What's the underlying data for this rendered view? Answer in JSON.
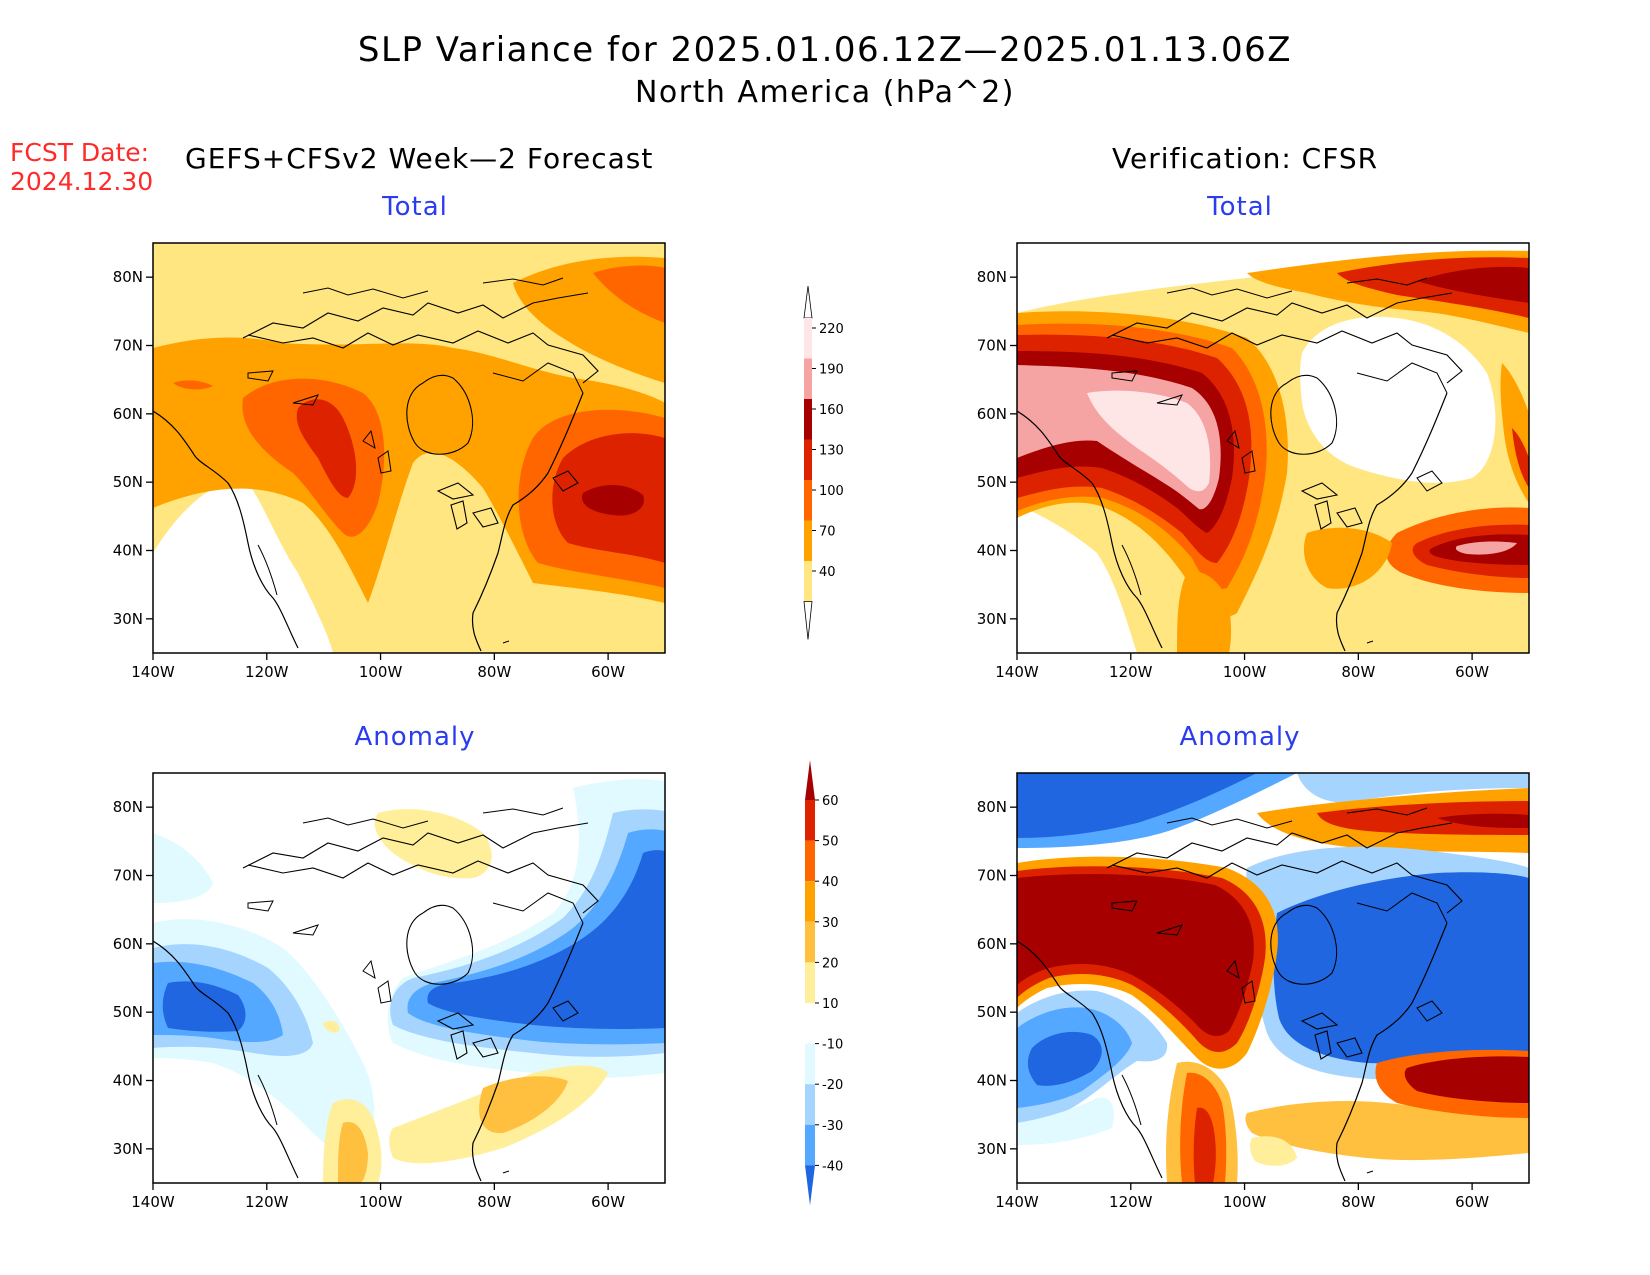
{
  "header": {
    "title_line1": "SLP Variance for 2025.01.06.12Z—2025.01.13.06Z",
    "title_line2": "North America (hPa^2)",
    "fcst_label": "FCST Date:",
    "fcst_date": "2024.12.30",
    "left_heading": "GEFS+CFSv2 Week—2 Forecast",
    "right_heading": "Verification: CFSR"
  },
  "panels": [
    {
      "id": "forecast-total",
      "title": "Total",
      "field": "total"
    },
    {
      "id": "verification-total",
      "title": "Total",
      "field": "total"
    },
    {
      "id": "forecast-anomaly",
      "title": "Anomaly",
      "field": "anomaly"
    },
    {
      "id": "verification-anomaly",
      "title": "Anomaly",
      "field": "anomaly"
    }
  ],
  "axes": {
    "lon_ticks": [
      "140W",
      "120W",
      "100W",
      "80W",
      "60W"
    ],
    "lat_ticks": [
      "80N",
      "70N",
      "60N",
      "50N",
      "40N",
      "30N"
    ]
  },
  "colorbar_total": {
    "labels": [
      "220",
      "190",
      "160",
      "130",
      "100",
      "70",
      "40"
    ],
    "colors": [
      "#ffe6e6",
      "#f5a3a3",
      "#a60000",
      "#dd2200",
      "#ff6600",
      "#ffa200",
      "#ffe680"
    ]
  },
  "colorbar_anomaly": {
    "labels": [
      "60",
      "50",
      "40",
      "30",
      "20",
      "10",
      "-10",
      "-20",
      "-30",
      "-40"
    ],
    "colors": [
      "#a60000",
      "#dd2200",
      "#ff6600",
      "#ffa200",
      "#ffc040",
      "#ffef9a",
      "#ffffff",
      "#e0faff",
      "#a5d5ff",
      "#55a8ff",
      "#1f66e0"
    ]
  }
}
